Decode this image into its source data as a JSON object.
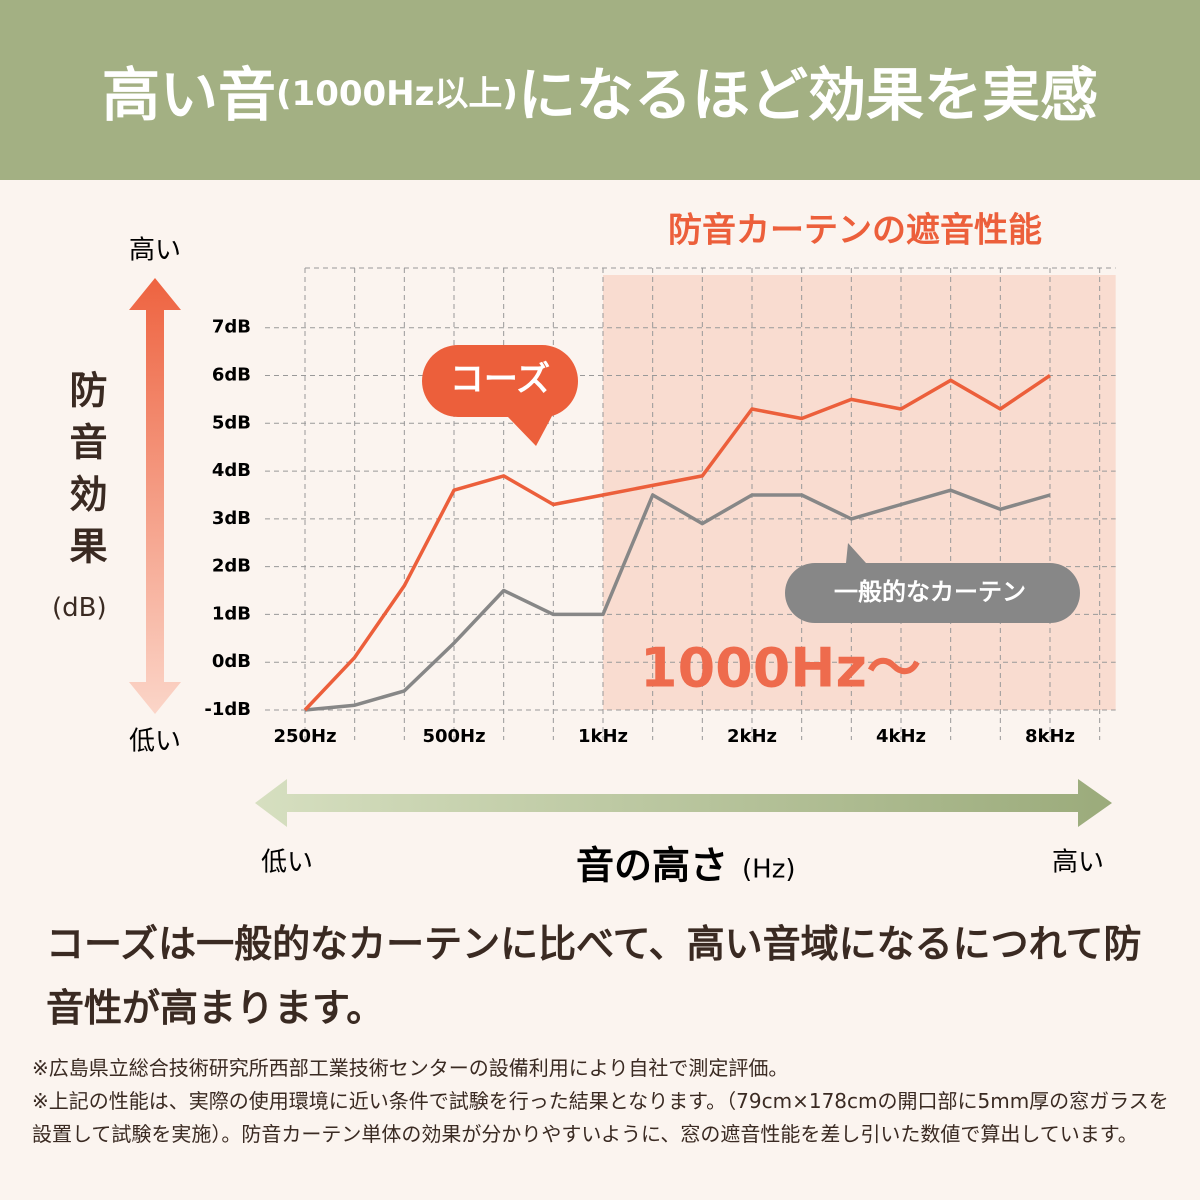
{
  "header": {
    "title_parts": [
      "高い音",
      "(1000Hz以上)",
      "になるほど効果を実感"
    ]
  },
  "chart_data": {
    "type": "line",
    "title": "防音カーテンの遮音性能",
    "y_axis_label": "防音効果",
    "y_axis_unit": "(dB)",
    "y_high": "高い",
    "y_low": "低い",
    "x_axis_label": "音の高さ",
    "x_axis_unit": "(Hz)",
    "x_low": "低い",
    "x_high": "高い",
    "categories": [
      "250Hz",
      null,
      null,
      "500Hz",
      null,
      null,
      "1kHz",
      null,
      null,
      "2kHz",
      null,
      null,
      "4kHz",
      null,
      null,
      "8kHz"
    ],
    "series": [
      {
        "name": "コーズ",
        "color": "#ec5f3b",
        "values": [
          -1,
          0.1,
          1.6,
          3.6,
          3.9,
          3.3,
          3.5,
          3.7,
          3.9,
          5.3,
          5.1,
          5.5,
          5.3,
          5.9,
          5.3,
          6.0
        ]
      },
      {
        "name": "一般的なカーテン",
        "color": "#878787",
        "values": [
          -1,
          -0.9,
          -0.6,
          0.4,
          1.5,
          1.0,
          1.0,
          3.5,
          2.9,
          3.5,
          3.5,
          3.0,
          3.3,
          3.6,
          3.2,
          3.5
        ]
      }
    ],
    "ylim": [
      -1,
      8.25
    ],
    "yticks": [
      {
        "value": -1,
        "label": "-1dB"
      },
      {
        "value": 0,
        "label": "0dB"
      },
      {
        "value": 1,
        "label": "1dB"
      },
      {
        "value": 2,
        "label": "2dB"
      },
      {
        "value": 3,
        "label": "3dB"
      },
      {
        "value": 4,
        "label": "4dB"
      },
      {
        "value": 5,
        "label": "5dB"
      },
      {
        "value": 6,
        "label": "6dB"
      },
      {
        "value": 7,
        "label": "7dB"
      }
    ],
    "grid": true,
    "highlight": {
      "from": "1kHz",
      "label": "1000Hz〜",
      "color": "#f9dcd0"
    }
  },
  "description": "コーズは一般的なカーテンに比べて、高い音域になるにつれて防音性が高まります。",
  "notes": [
    "※広島県立総合技術研究所西部工業技術センターの設備利用により自社で測定評価。",
    "※上記の性能は、実際の使用環境に近い条件で試験を行った結果となります。（79cm×178cmの開口部に5mm厚の窓ガラスを設置して試験を実施）。防音カーテン単体の効果が分かりやすいように、窓の遮音性能を差し引いた数値で算出しています。"
  ]
}
